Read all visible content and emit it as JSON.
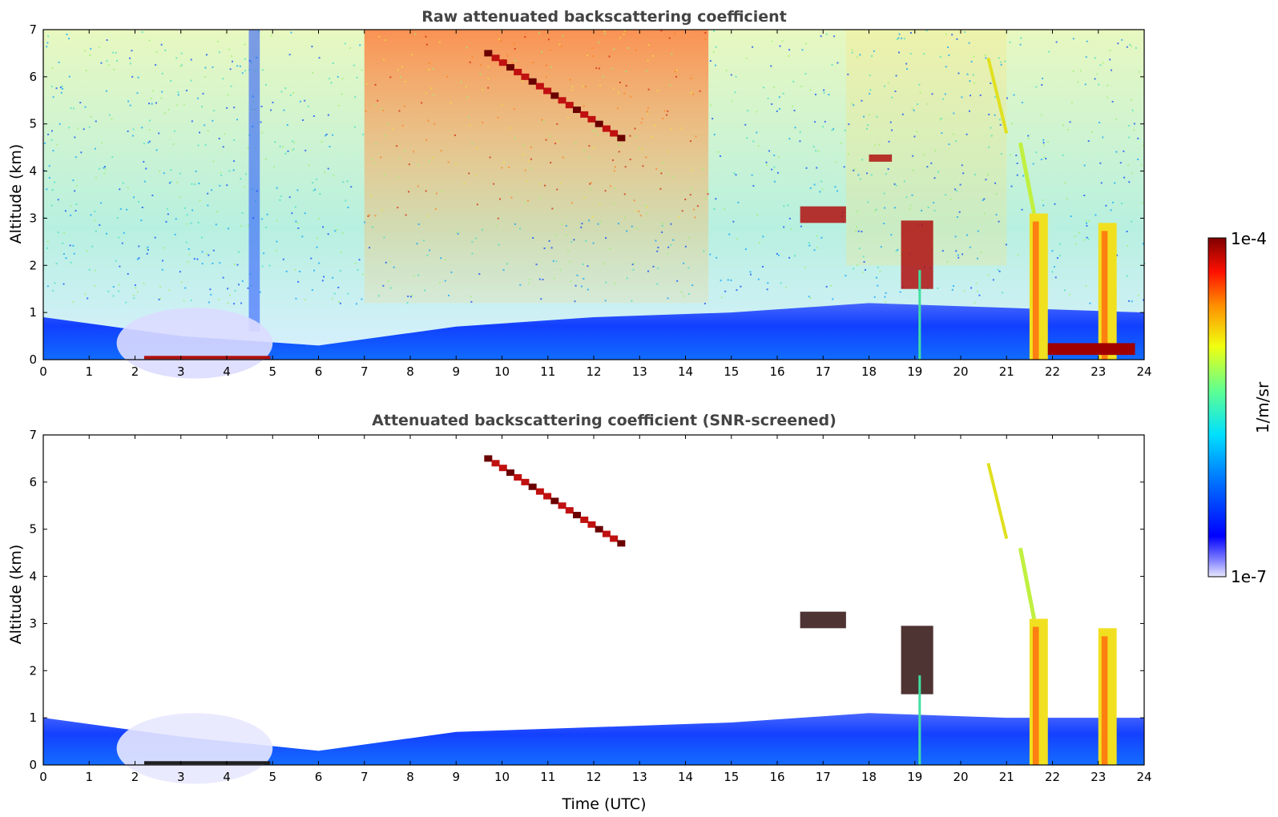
{
  "chart_data": [
    {
      "type": "heatmap",
      "title": "Raw attenuated backscattering coefficient",
      "xlabel": "",
      "ylabel": "Altitude (km)",
      "xlim": [
        0,
        24
      ],
      "ylim": [
        0,
        7
      ],
      "xticks": [
        "0",
        "1",
        "2",
        "3",
        "4",
        "5",
        "6",
        "7",
        "8",
        "9",
        "10",
        "11",
        "12",
        "13",
        "14",
        "15",
        "16",
        "17",
        "18",
        "19",
        "20",
        "21",
        "22",
        "23",
        "24"
      ],
      "yticks": [
        "0",
        "1",
        "2",
        "3",
        "4",
        "5",
        "6",
        "7"
      ],
      "grid": false,
      "features": [
        {
          "kind": "boundary_layer",
          "x": [
            0,
            24
          ],
          "top_km": [
            0.9,
            0.5,
            0.3,
            0.7,
            0.9,
            1.0,
            1.2,
            1.1,
            1.0
          ]
        },
        {
          "kind": "elevated_cloud_layer",
          "x": [
            9.7,
            12.6
          ],
          "y": [
            6.5,
            4.7
          ]
        },
        {
          "kind": "cloud",
          "x": [
            16.5,
            17.5
          ],
          "y": [
            3.2,
            2.9
          ]
        },
        {
          "kind": "cloud",
          "x": [
            18.0,
            18.5
          ],
          "y": [
            4.3,
            4.2
          ]
        },
        {
          "kind": "cloud",
          "x": [
            18.7,
            19.4
          ],
          "y": [
            2.9,
            1.5
          ]
        },
        {
          "kind": "precipitation_column",
          "x": [
            21.5,
            21.9
          ],
          "y": [
            0,
            3.1
          ]
        },
        {
          "kind": "precipitation_column",
          "x": [
            23.0,
            23.4
          ],
          "y": [
            0,
            2.9
          ]
        },
        {
          "kind": "low_cloud",
          "x": [
            21.9,
            23.8
          ],
          "y": [
            0.1,
            0.35
          ]
        }
      ]
    },
    {
      "type": "heatmap",
      "title": "Attenuated backscattering coefficient (SNR-screened)",
      "xlabel": "Time (UTC)",
      "ylabel": "Altitude (km)",
      "xlim": [
        0,
        24
      ],
      "ylim": [
        0,
        7
      ],
      "xticks": [
        "0",
        "1",
        "2",
        "3",
        "4",
        "5",
        "6",
        "7",
        "8",
        "9",
        "10",
        "11",
        "12",
        "13",
        "14",
        "15",
        "16",
        "17",
        "18",
        "19",
        "20",
        "21",
        "22",
        "23",
        "24"
      ],
      "yticks": [
        "0",
        "1",
        "2",
        "3",
        "4",
        "5",
        "6",
        "7"
      ],
      "grid": false,
      "features": [
        {
          "kind": "boundary_layer",
          "x": [
            0,
            24
          ],
          "top_km": [
            1.0,
            0.6,
            0.3,
            0.7,
            0.8,
            0.9,
            1.1,
            1.0,
            1.0
          ]
        },
        {
          "kind": "elevated_cloud_layer",
          "x": [
            9.7,
            12.6
          ],
          "y": [
            6.5,
            4.7
          ]
        },
        {
          "kind": "cloud",
          "x": [
            16.5,
            17.5
          ],
          "y": [
            3.2,
            2.9
          ]
        },
        {
          "kind": "cloud",
          "x": [
            18.7,
            19.4
          ],
          "y": [
            2.9,
            1.5
          ]
        },
        {
          "kind": "precipitation_column",
          "x": [
            21.5,
            21.9
          ],
          "y": [
            0,
            3.1
          ]
        },
        {
          "kind": "precipitation_column",
          "x": [
            23.0,
            23.4
          ],
          "y": [
            0,
            2.9
          ]
        }
      ]
    }
  ],
  "colorbar": {
    "label": "1/m/sr",
    "max_label": "1e-4",
    "min_label": "1e-7",
    "scale": "log",
    "colormap": "jet",
    "low_color": "#e6e6ff",
    "high_color": "#7f0000"
  }
}
